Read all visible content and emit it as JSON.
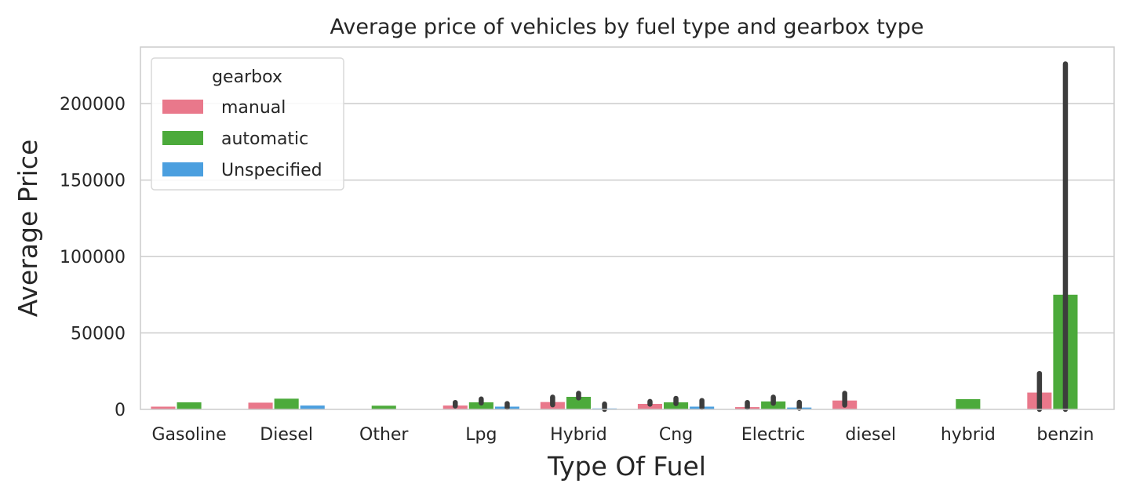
{
  "chart_data": {
    "type": "bar",
    "title": "Average price of vehicles by fuel type and gearbox type",
    "xlabel": "Type Of Fuel",
    "ylabel": "Average Price",
    "ylim": [
      0,
      237000
    ],
    "yticks": [
      "0",
      "50000",
      "100000",
      "150000",
      "200000"
    ],
    "ytick_values": [
      0,
      50000,
      100000,
      150000,
      200000
    ],
    "grid": "horizontal",
    "legend": {
      "title": "gearbox",
      "placement": "top-left"
    },
    "categories": [
      "Gasoline",
      "Diesel",
      "Other",
      "Lpg",
      "Hybrid",
      "Cng",
      "Electric",
      "diesel",
      "hybrid",
      "benzin"
    ],
    "series": [
      {
        "name": "manual",
        "color": "#e9788b",
        "values": [
          1800,
          4400,
          null,
          2500,
          4800,
          3600,
          1500,
          5800,
          null,
          11000
        ],
        "ci_low": [
          null,
          null,
          null,
          2200,
          3000,
          3400,
          1200,
          2800,
          null,
          0
        ],
        "ci_high": [
          null,
          null,
          null,
          4500,
          8000,
          5200,
          4500,
          10500,
          null,
          23500
        ]
      },
      {
        "name": "automatic",
        "color": "#4caa3b",
        "values": [
          4600,
          7000,
          2400,
          4600,
          8200,
          4600,
          5200,
          null,
          6700,
          75000
        ],
        "ci_low": [
          null,
          null,
          null,
          4200,
          7500,
          3800,
          4000,
          null,
          null,
          0
        ],
        "ci_high": [
          null,
          null,
          null,
          6800,
          10500,
          7200,
          8000,
          null,
          null,
          226000
        ]
      },
      {
        "name": "Unspecified",
        "color": "#4b9fdf",
        "values": [
          null,
          2500,
          null,
          1800,
          600,
          1800,
          1200,
          null,
          null,
          null
        ],
        "ci_low": [
          null,
          null,
          null,
          1200,
          0,
          1200,
          800,
          null,
          null,
          null
        ],
        "ci_high": [
          null,
          null,
          null,
          3800,
          3500,
          5800,
          4600,
          null,
          null,
          null
        ]
      }
    ]
  }
}
